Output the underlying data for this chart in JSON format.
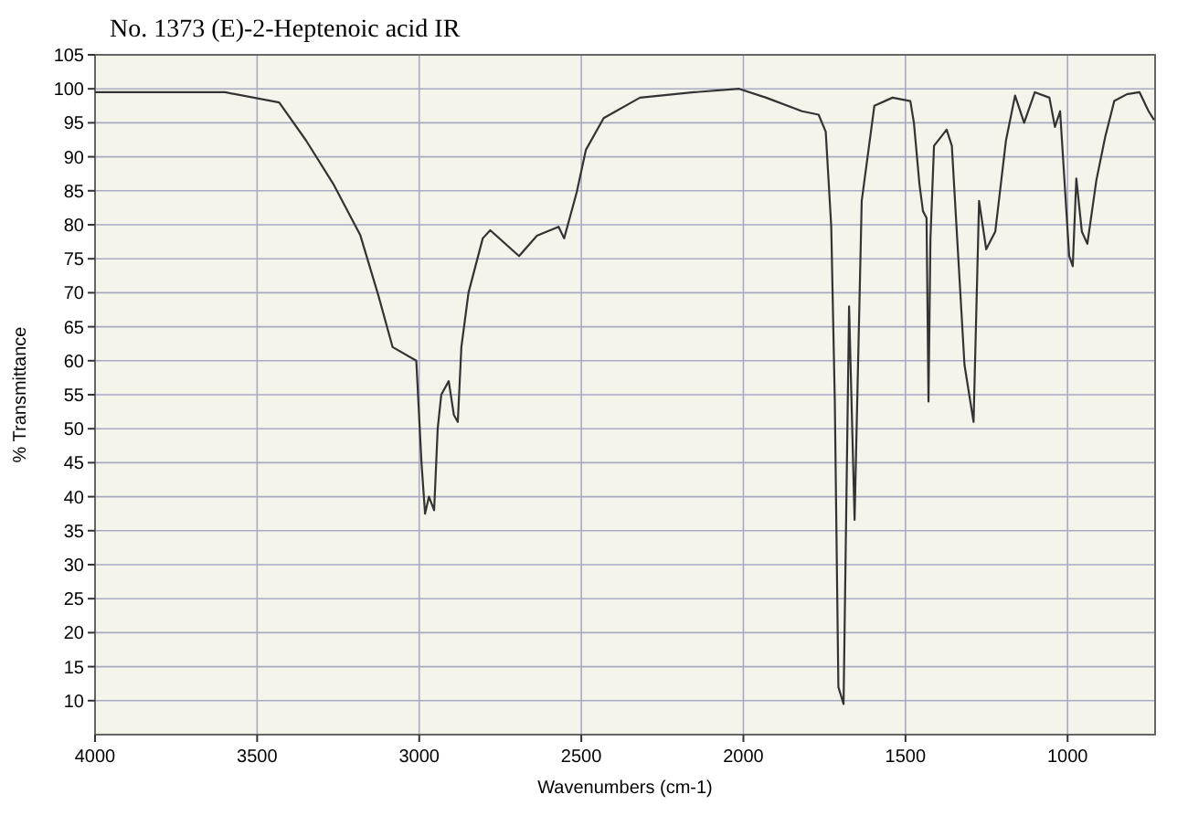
{
  "chart_data": {
    "type": "line",
    "title": "No. 1373 (E)-2-Heptenoic acid IR",
    "xlabel": "Wavenumbers (cm-1)",
    "ylabel": "% Transmittance",
    "xlim": [
      4000,
      730
    ],
    "xticks": [
      4000,
      3500,
      3000,
      2500,
      2000,
      1500,
      1000
    ],
    "ylim": [
      5,
      105
    ],
    "yticks": [
      10,
      15,
      20,
      25,
      30,
      35,
      40,
      45,
      50,
      55,
      60,
      65,
      70,
      75,
      80,
      85,
      90,
      95,
      100,
      105
    ],
    "grid": true,
    "series": [
      {
        "color": "#333333",
        "x": [
          4000,
          3599,
          3432,
          3349,
          3265,
          3182,
          3126,
          3082,
          3009,
          2993,
          2982,
          2970,
          2954,
          2943,
          2932,
          2909,
          2893,
          2881,
          2870,
          2848,
          2804,
          2781,
          2692,
          2637,
          2570,
          2553,
          2514,
          2486,
          2431,
          2319,
          2152,
          2013,
          1930,
          1819,
          1768,
          1746,
          1729,
          1718,
          1707,
          1691,
          1674,
          1657,
          1635,
          1596,
          1540,
          1485,
          1474,
          1457,
          1446,
          1435,
          1429,
          1423,
          1412,
          1373,
          1357,
          1318,
          1290,
          1273,
          1251,
          1223,
          1190,
          1162,
          1134,
          1101,
          1056,
          1039,
          1023,
          995,
          984,
          973,
          956,
          939,
          911,
          884,
          856,
          817,
          778,
          750,
          733
        ],
        "values": [
          99.5,
          99.5,
          98,
          92.4,
          86,
          78.5,
          69.6,
          62,
          60,
          45,
          37.5,
          40,
          38,
          50,
          55,
          57,
          52,
          51,
          62,
          70,
          78,
          79.2,
          75.4,
          78.4,
          79.7,
          78,
          84.8,
          91,
          95.7,
          98.7,
          99.5,
          100,
          98.7,
          96.7,
          96.2,
          93.7,
          79.7,
          54,
          12,
          9.5,
          68,
          36.6,
          83.5,
          97.5,
          98.7,
          98.2,
          95,
          86,
          82,
          81,
          54,
          78,
          91.6,
          94,
          91.6,
          59.4,
          51,
          83.5,
          76.4,
          79,
          92.4,
          99,
          95,
          99.5,
          98.7,
          94.4,
          96.7,
          75.4,
          73.9,
          86.8,
          79,
          77.2,
          86.6,
          92.9,
          98.2,
          99.2,
          99.5,
          96.7,
          95.4
        ]
      }
    ]
  }
}
